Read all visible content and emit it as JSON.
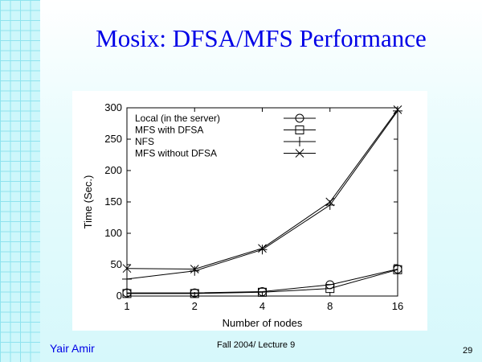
{
  "slide": {
    "title": "Mosix: DFSA/MFS Performance",
    "footer_left": "Yair Amir",
    "footer_center": "Fall 2004/ Lecture 9",
    "page_number": "29"
  },
  "colors": {
    "title": "#0000e6",
    "grid_strip": "#cdf7fb",
    "grid_lines": "#8fe3ee"
  },
  "chart_data": {
    "type": "line",
    "xlabel": "Number of nodes",
    "ylabel": "Time (Sec.)",
    "x": [
      1,
      2,
      4,
      8,
      16
    ],
    "x_tick_labels": [
      "1",
      "2",
      "4",
      "8",
      "16"
    ],
    "x_scale": "log2",
    "ylim": [
      0,
      300
    ],
    "y_ticks": [
      0,
      50,
      100,
      150,
      200,
      250,
      300
    ],
    "grid": false,
    "legend_position": "top-right",
    "series": [
      {
        "name": "Local (in the server)",
        "marker": "circle",
        "values": [
          5,
          5,
          7,
          18,
          43
        ]
      },
      {
        "name": "MFS with DFSA",
        "marker": "square",
        "values": [
          4,
          4,
          6,
          12,
          42
        ]
      },
      {
        "name": "NFS",
        "marker": "plus",
        "values": [
          27,
          40,
          74,
          145,
          295
        ]
      },
      {
        "name": "MFS without DFSA",
        "marker": "cross",
        "values": [
          44,
          43,
          76,
          150,
          297
        ]
      }
    ]
  }
}
